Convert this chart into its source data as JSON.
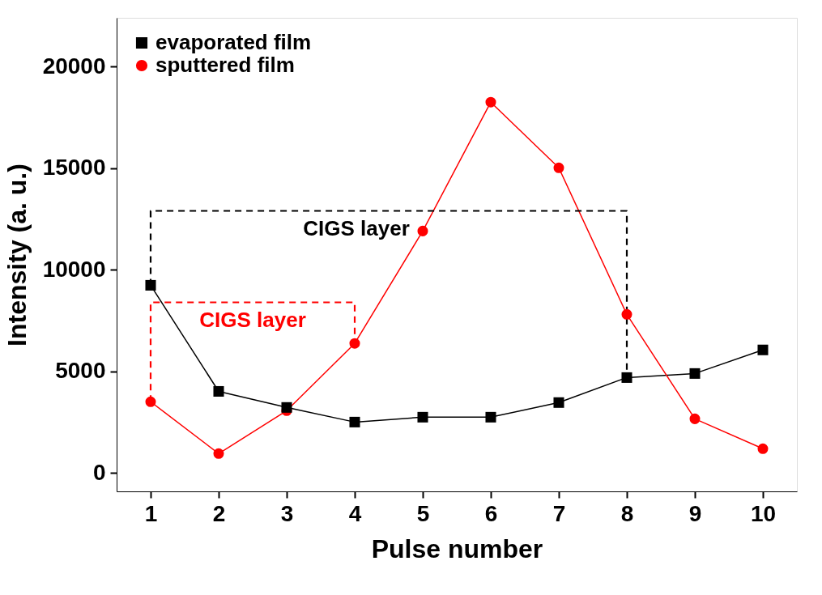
{
  "chart_data": {
    "type": "line",
    "xlabel": "Pulse number",
    "ylabel": "Intensity (a. u.)",
    "x": [
      1,
      2,
      3,
      4,
      5,
      6,
      7,
      8,
      9,
      10
    ],
    "xlim": [
      0.5,
      10.5
    ],
    "xticks": [
      1,
      2,
      3,
      4,
      5,
      6,
      7,
      8,
      9,
      10
    ],
    "ylim": [
      -900,
      22400
    ],
    "yticks": [
      0,
      5000,
      10000,
      15000,
      20000
    ],
    "grid": false,
    "legend": "top left",
    "series": [
      {
        "name": "evaporated film",
        "color": "#000000",
        "marker": "square",
        "line_style": "solid",
        "values": [
          9240,
          4020,
          3230,
          2510,
          2750,
          2750,
          3470,
          4700,
          4900,
          6060
        ]
      },
      {
        "name": "sputtered film",
        "color": "#ff0000",
        "marker": "circle",
        "line_style": "solid",
        "values": [
          3510,
          960,
          3070,
          6380,
          11910,
          18250,
          15020,
          7810,
          2670,
          1200
        ]
      },
      {
        "color": "#000000",
        "line_style": "dashed",
        "x": [
          1,
          1,
          8,
          8
        ],
        "values": [
          9240,
          12900,
          12900,
          4700
        ]
      },
      {
        "color": "#ff0000",
        "line_style": "dashed",
        "x": [
          1,
          1,
          4,
          4
        ],
        "values": [
          3510,
          8400,
          8400,
          6380
        ]
      }
    ],
    "annotations": [
      "CIGS layer",
      "CIGS layer"
    ]
  }
}
